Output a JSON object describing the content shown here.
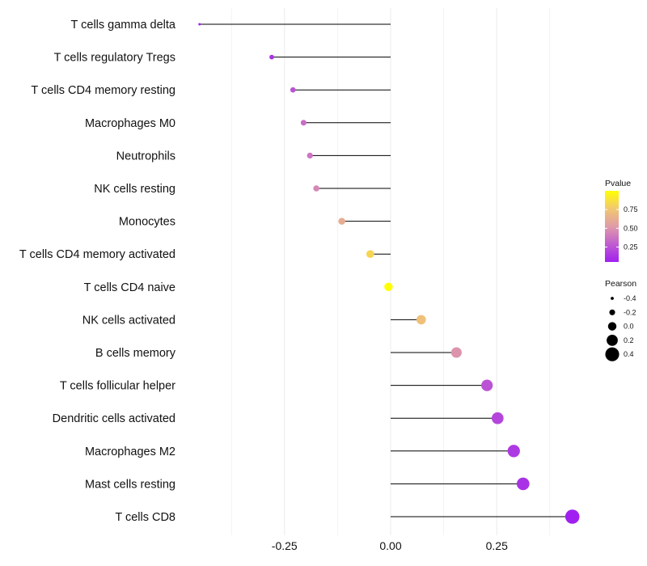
{
  "chart_data": {
    "type": "lollipop",
    "title": "",
    "xlabel": "",
    "ylabel": "",
    "xlim": [
      -0.45,
      0.45
    ],
    "x_ticks": [
      -0.25,
      0.0,
      0.25
    ],
    "x_tick_labels": [
      "-0.25",
      "0.00",
      "0.25"
    ],
    "grid": true,
    "categories": [
      "T cells gamma delta",
      "T cells regulatory  Tregs",
      "T cells CD4 memory resting",
      "Macrophages M0",
      "Neutrophils",
      "NK cells resting",
      "Monocytes",
      "T cells CD4 memory activated",
      "T cells CD4 naive",
      "NK cells activated",
      "B cells memory",
      "T cells follicular helper",
      "Dendritic cells activated",
      "Macrophages M2",
      "Mast cells resting",
      "T cells CD8"
    ],
    "pearson": [
      -0.45,
      -0.28,
      -0.23,
      -0.205,
      -0.19,
      -0.175,
      -0.115,
      -0.048,
      -0.005,
      0.072,
      0.155,
      0.227,
      0.252,
      0.29,
      0.312,
      0.428
    ],
    "pvalue": [
      0.05,
      0.12,
      0.25,
      0.35,
      0.38,
      0.45,
      0.62,
      0.82,
      1.0,
      0.72,
      0.5,
      0.25,
      0.2,
      0.15,
      0.12,
      0.05
    ],
    "legend": {
      "position": "right",
      "color": {
        "title": "Pvalue",
        "ticks": [
          0.25,
          0.5,
          0.75
        ],
        "tick_labels": [
          "0.25",
          "0.50",
          "0.75"
        ],
        "range": [
          0.05,
          1.0
        ],
        "low_color": "#a020f0",
        "high_color": "#ffff00"
      },
      "size": {
        "title": "Pearson",
        "values": [
          -0.4,
          -0.2,
          0.0,
          0.2,
          0.4
        ],
        "labels": [
          "-0.4",
          "-0.2",
          "0.0",
          "0.2",
          "0.4"
        ]
      }
    }
  },
  "colors": {
    "stem": "#000000",
    "grid": "#ebebeb",
    "scale": [
      "#a020f0",
      "#c05cd0",
      "#df9ba8",
      "#f2c870",
      "#ffff00"
    ]
  }
}
